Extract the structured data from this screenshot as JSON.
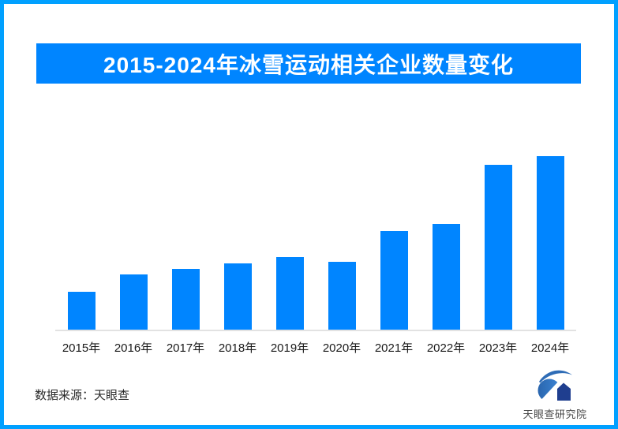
{
  "frame": {
    "border_color": "#00A0FF",
    "background": "#FFFFFF"
  },
  "title_banner": {
    "text": "2015-2024年冰雪运动相关企业数量变化",
    "background": "#0085FF",
    "text_color": "#FFFFFF"
  },
  "chart_data": {
    "type": "bar",
    "title": "2015-2024年冰雪运动相关企业数量变化",
    "categories": [
      "2015年",
      "2016年",
      "2017年",
      "2018年",
      "2019年",
      "2020年",
      "2021年",
      "2022年",
      "2023年",
      "2024年"
    ],
    "values": [
      22,
      32,
      35,
      38,
      42,
      39,
      57,
      61,
      95,
      100
    ],
    "values_note": "no numeric labels or y-axis shown in image; values estimated from bar heights, normalized to 2024 = 100",
    "bar_color": "#0085FF",
    "axis_line_color": "#E2E2E2",
    "xlabel": "",
    "ylabel": "",
    "ylim": [
      0,
      105
    ],
    "grid": false,
    "legend": false
  },
  "footer": {
    "source_label": "数据来源：天眼查",
    "logo": {
      "icon": "tianyancha-eye-icon",
      "text": "天眼查研究院",
      "primary_color": "#2E6CB6",
      "dark_color": "#1F3E8F"
    }
  }
}
